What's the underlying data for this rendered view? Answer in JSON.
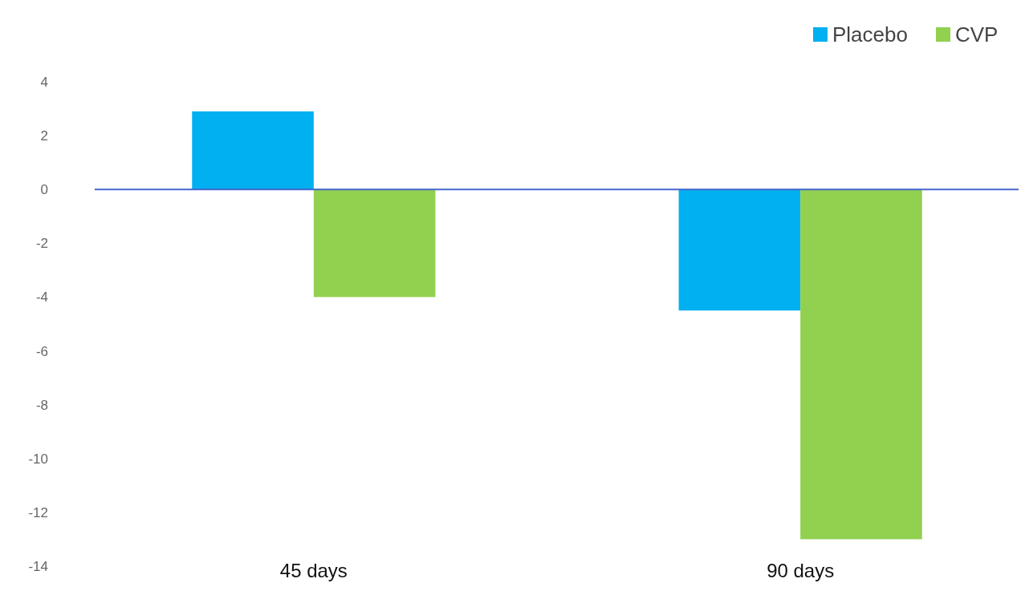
{
  "chart_data": {
    "type": "bar",
    "categories": [
      "45 days",
      "90 days"
    ],
    "series": [
      {
        "name": "Placebo",
        "color": "#00b0f0",
        "values": [
          2.9,
          -4.5
        ]
      },
      {
        "name": "CVP",
        "color": "#92d050",
        "values": [
          -4.0,
          -13.0
        ]
      }
    ],
    "ylim": [
      -14,
      4
    ],
    "yticks": [
      -14,
      -12,
      -10,
      -8,
      -6,
      -4,
      -2,
      0,
      2,
      4
    ],
    "ref_lines": [
      {
        "axis": "y",
        "value": 0,
        "color": "#4466cc"
      }
    ],
    "grid": false,
    "legend": "top right"
  }
}
